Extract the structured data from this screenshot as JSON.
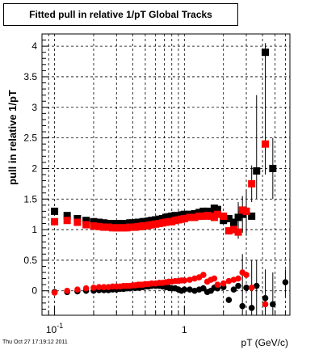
{
  "chart_data": {
    "type": "scatter",
    "title": "Fitted pull in relative 1/pT  Global Tracks",
    "xlabel": "pT (GeV/c)",
    "ylabel": "pull in relative 1/pT",
    "xscale": "log",
    "xlim": [
      0.08,
      6.5
    ],
    "ylim": [
      -0.4,
      4.2
    ],
    "grid": true,
    "x_tick_labels": [
      {
        "value": 0.1,
        "label": "10^-1"
      },
      {
        "value": 1,
        "label": "1"
      }
    ],
    "y_tick_labels": [
      {
        "value": 0,
        "label": "0"
      },
      {
        "value": 0.5,
        "label": "0.5"
      },
      {
        "value": 1,
        "label": "1"
      },
      {
        "value": 1.5,
        "label": "1.5"
      },
      {
        "value": 2,
        "label": "2"
      },
      {
        "value": 2.5,
        "label": "2.5"
      },
      {
        "value": 3,
        "label": "3"
      },
      {
        "value": 3.5,
        "label": "3.5"
      },
      {
        "value": 4,
        "label": "4"
      }
    ],
    "series": [
      {
        "color": "#000000",
        "marker": "square",
        "points": [
          [
            0.1,
            1.3
          ],
          [
            0.125,
            1.23
          ],
          [
            0.15,
            1.18
          ],
          [
            0.175,
            1.15
          ],
          [
            0.2,
            1.13
          ],
          [
            0.22,
            1.12
          ],
          [
            0.24,
            1.11
          ],
          [
            0.26,
            1.1
          ],
          [
            0.28,
            1.1
          ],
          [
            0.3,
            1.1
          ],
          [
            0.32,
            1.1
          ],
          [
            0.34,
            1.1
          ],
          [
            0.36,
            1.1
          ],
          [
            0.38,
            1.11
          ],
          [
            0.4,
            1.11
          ],
          [
            0.42,
            1.11
          ],
          [
            0.44,
            1.12
          ],
          [
            0.46,
            1.12
          ],
          [
            0.48,
            1.13
          ],
          [
            0.5,
            1.13
          ],
          [
            0.53,
            1.14
          ],
          [
            0.56,
            1.15
          ],
          [
            0.6,
            1.16
          ],
          [
            0.64,
            1.17
          ],
          [
            0.68,
            1.18
          ],
          [
            0.72,
            1.2
          ],
          [
            0.76,
            1.21
          ],
          [
            0.8,
            1.22
          ],
          [
            0.85,
            1.23
          ],
          [
            0.9,
            1.22
          ],
          [
            0.95,
            1.24
          ],
          [
            1.0,
            1.25
          ],
          [
            1.1,
            1.25
          ],
          [
            1.2,
            1.26
          ],
          [
            1.3,
            1.28
          ],
          [
            1.4,
            1.3
          ],
          [
            1.5,
            1.3
          ],
          [
            1.6,
            1.28
          ],
          [
            1.7,
            1.35
          ],
          [
            1.8,
            1.33
          ],
          [
            2.0,
            1.15
          ],
          [
            2.2,
            1.18
          ],
          [
            2.4,
            1.12
          ],
          [
            2.6,
            1.2
          ],
          [
            2.8,
            1.25
          ],
          [
            3.0,
            1.3
          ],
          [
            3.3,
            1.22
          ],
          [
            3.6,
            1.96
          ],
          [
            4.2,
            3.9
          ],
          [
            4.8,
            2.0
          ]
        ]
      },
      {
        "color": "#ff0000",
        "marker": "square",
        "points": [
          [
            0.1,
            1.13
          ],
          [
            0.125,
            1.15
          ],
          [
            0.15,
            1.12
          ],
          [
            0.175,
            1.08
          ],
          [
            0.2,
            1.06
          ],
          [
            0.22,
            1.05
          ],
          [
            0.24,
            1.04
          ],
          [
            0.26,
            1.04
          ],
          [
            0.28,
            1.03
          ],
          [
            0.3,
            1.03
          ],
          [
            0.32,
            1.03
          ],
          [
            0.34,
            1.03
          ],
          [
            0.36,
            1.03
          ],
          [
            0.38,
            1.04
          ],
          [
            0.4,
            1.04
          ],
          [
            0.42,
            1.04
          ],
          [
            0.44,
            1.05
          ],
          [
            0.46,
            1.05
          ],
          [
            0.48,
            1.06
          ],
          [
            0.5,
            1.06
          ],
          [
            0.53,
            1.07
          ],
          [
            0.56,
            1.08
          ],
          [
            0.6,
            1.09
          ],
          [
            0.64,
            1.1
          ],
          [
            0.68,
            1.11
          ],
          [
            0.72,
            1.12
          ],
          [
            0.76,
            1.13
          ],
          [
            0.8,
            1.13
          ],
          [
            0.85,
            1.15
          ],
          [
            0.9,
            1.16
          ],
          [
            0.95,
            1.17
          ],
          [
            1.0,
            1.18
          ],
          [
            1.1,
            1.2
          ],
          [
            1.2,
            1.2
          ],
          [
            1.3,
            1.22
          ],
          [
            1.4,
            1.22
          ],
          [
            1.5,
            1.23
          ],
          [
            1.6,
            1.22
          ],
          [
            1.7,
            1.2
          ],
          [
            1.8,
            1.25
          ],
          [
            2.0,
            1.22
          ],
          [
            2.2,
            0.98
          ],
          [
            2.4,
            1.0
          ],
          [
            2.6,
            0.96
          ],
          [
            2.8,
            1.32
          ],
          [
            3.0,
            1.3
          ],
          [
            3.3,
            1.75
          ],
          [
            4.2,
            2.4
          ]
        ]
      },
      {
        "color": "#000000",
        "marker": "circle",
        "points": [
          [
            0.1,
            -0.02
          ],
          [
            0.125,
            -0.02
          ],
          [
            0.15,
            -0.01
          ],
          [
            0.175,
            0.0
          ],
          [
            0.2,
            0.0
          ],
          [
            0.22,
            0.01
          ],
          [
            0.24,
            0.01
          ],
          [
            0.26,
            0.01
          ],
          [
            0.28,
            0.02
          ],
          [
            0.3,
            0.02
          ],
          [
            0.32,
            0.03
          ],
          [
            0.34,
            0.03
          ],
          [
            0.36,
            0.04
          ],
          [
            0.38,
            0.04
          ],
          [
            0.4,
            0.05
          ],
          [
            0.42,
            0.05
          ],
          [
            0.44,
            0.05
          ],
          [
            0.46,
            0.06
          ],
          [
            0.48,
            0.06
          ],
          [
            0.5,
            0.07
          ],
          [
            0.53,
            0.07
          ],
          [
            0.56,
            0.08
          ],
          [
            0.6,
            0.08
          ],
          [
            0.64,
            0.08
          ],
          [
            0.68,
            0.07
          ],
          [
            0.72,
            0.06
          ],
          [
            0.76,
            0.05
          ],
          [
            0.8,
            0.04
          ],
          [
            0.85,
            0.04
          ],
          [
            0.9,
            0.02
          ],
          [
            0.95,
            0.0
          ],
          [
            1.0,
            0.02
          ],
          [
            1.1,
            0.02
          ],
          [
            1.2,
            0.0
          ],
          [
            1.3,
            0.02
          ],
          [
            1.4,
            0.04
          ],
          [
            1.5,
            -0.02
          ],
          [
            1.6,
            0.0
          ],
          [
            1.7,
            0.05
          ],
          [
            1.8,
            0.04
          ],
          [
            2.0,
            0.06
          ],
          [
            2.2,
            -0.15
          ],
          [
            2.4,
            0.02
          ],
          [
            2.6,
            0.08
          ],
          [
            2.8,
            -0.25
          ],
          [
            3.0,
            0.05
          ],
          [
            3.3,
            -0.28
          ],
          [
            3.6,
            0.08
          ],
          [
            4.2,
            -0.12
          ],
          [
            4.8,
            -0.22
          ],
          [
            6.0,
            0.14
          ]
        ]
      },
      {
        "color": "#ff0000",
        "marker": "circle",
        "points": [
          [
            0.1,
            -0.03
          ],
          [
            0.125,
            0.0
          ],
          [
            0.15,
            0.02
          ],
          [
            0.175,
            0.04
          ],
          [
            0.2,
            0.05
          ],
          [
            0.22,
            0.06
          ],
          [
            0.24,
            0.06
          ],
          [
            0.26,
            0.06
          ],
          [
            0.28,
            0.07
          ],
          [
            0.3,
            0.07
          ],
          [
            0.32,
            0.07
          ],
          [
            0.34,
            0.08
          ],
          [
            0.36,
            0.08
          ],
          [
            0.38,
            0.08
          ],
          [
            0.4,
            0.09
          ],
          [
            0.42,
            0.09
          ],
          [
            0.44,
            0.1
          ],
          [
            0.46,
            0.1
          ],
          [
            0.48,
            0.1
          ],
          [
            0.5,
            0.11
          ],
          [
            0.53,
            0.11
          ],
          [
            0.56,
            0.12
          ],
          [
            0.6,
            0.12
          ],
          [
            0.64,
            0.13
          ],
          [
            0.68,
            0.13
          ],
          [
            0.72,
            0.14
          ],
          [
            0.76,
            0.15
          ],
          [
            0.8,
            0.15
          ],
          [
            0.85,
            0.16
          ],
          [
            0.9,
            0.16
          ],
          [
            0.95,
            0.17
          ],
          [
            1.0,
            0.17
          ],
          [
            1.1,
            0.18
          ],
          [
            1.2,
            0.2
          ],
          [
            1.3,
            0.22
          ],
          [
            1.4,
            0.26
          ],
          [
            1.5,
            0.15
          ],
          [
            1.6,
            0.18
          ],
          [
            1.7,
            0.2
          ],
          [
            1.8,
            0.1
          ],
          [
            2.0,
            0.12
          ],
          [
            2.2,
            0.16
          ],
          [
            2.4,
            0.18
          ],
          [
            2.6,
            0.2
          ],
          [
            2.8,
            0.3
          ],
          [
            3.0,
            0.26
          ],
          [
            3.3,
            0.05
          ],
          [
            4.2,
            -0.22
          ]
        ]
      }
    ],
    "error_bars": [
      {
        "x": 3.6,
        "ylow": 1.5,
        "yhigh": 3.2
      },
      {
        "x": 4.2,
        "ylow": 2.8,
        "yhigh": 4.05
      },
      {
        "x": 4.2,
        "ylow": 1.9,
        "yhigh": 2.9
      },
      {
        "x": 3.3,
        "ylow": 1.45,
        "yhigh": 2.05
      },
      {
        "x": 3.0,
        "ylow": 0.9,
        "yhigh": 1.65
      },
      {
        "x": 2.8,
        "ylow": 0.95,
        "yhigh": 1.55
      },
      {
        "x": 2.6,
        "ylow": 0.85,
        "yhigh": 1.45
      },
      {
        "x": 4.8,
        "ylow": 1.5,
        "yhigh": 2.5
      },
      {
        "x": 2.8,
        "ylow": -0.4,
        "yhigh": 0.6
      },
      {
        "x": 3.3,
        "ylow": -0.4,
        "yhigh": 0.5
      },
      {
        "x": 3.6,
        "ylow": -0.4,
        "yhigh": 0.5
      },
      {
        "x": 4.2,
        "ylow": -0.45,
        "yhigh": 0.35
      },
      {
        "x": 4.8,
        "ylow": -0.45,
        "yhigh": 0.3
      },
      {
        "x": 6.0,
        "ylow": -0.1,
        "yhigh": 0.35
      }
    ]
  },
  "timestamp": "Thu Oct 27 17:19:12 2011"
}
